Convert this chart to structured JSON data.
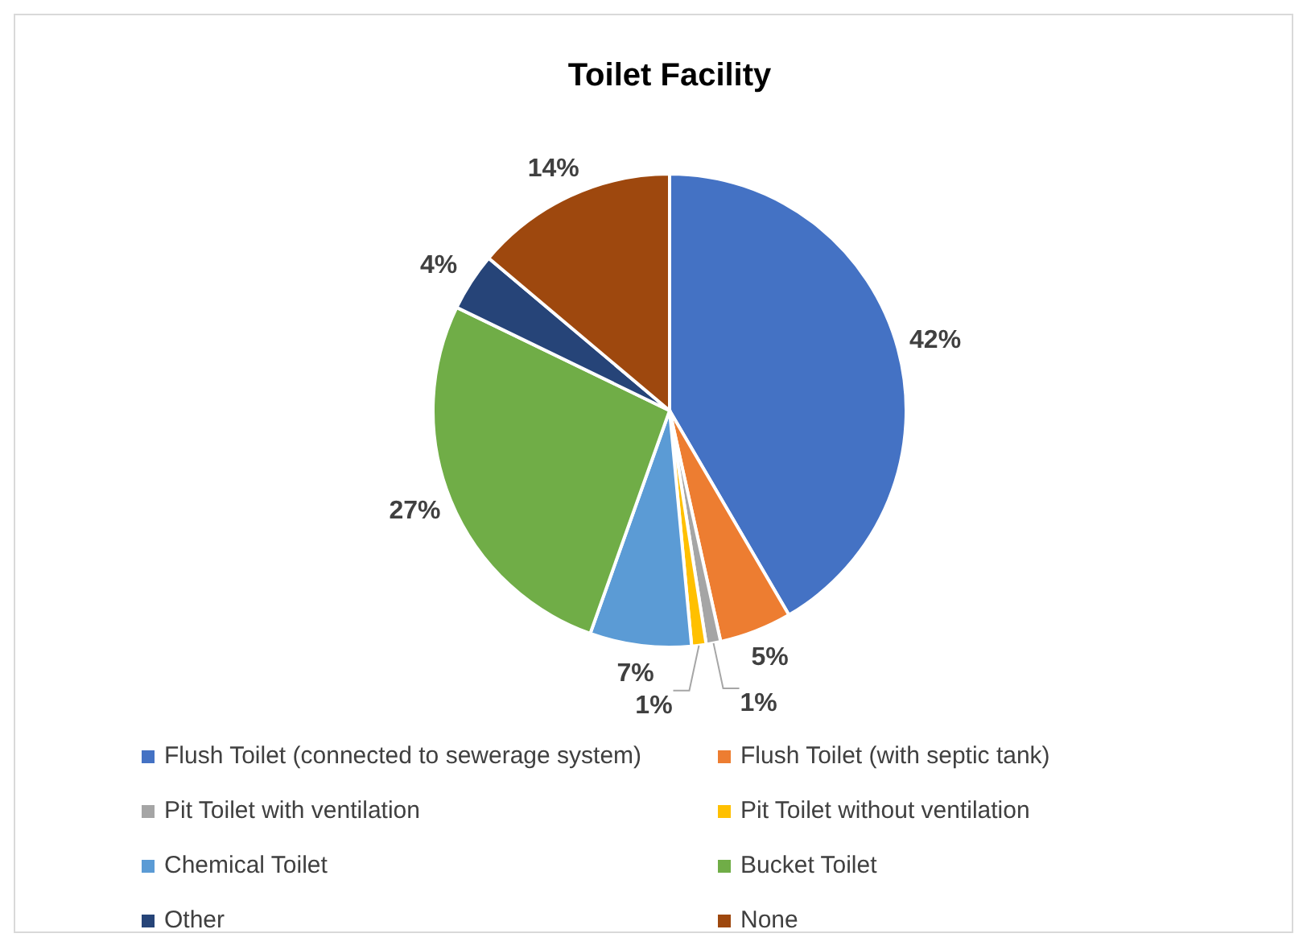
{
  "chart_data": {
    "type": "pie",
    "title": "Toilet Facility",
    "categories": [
      "Flush Toilet (connected to sewerage system)",
      "Flush Toilet (with septic tank)",
      "Pit Toilet with ventilation",
      "Pit Toilet without ventilation",
      "Chemical Toilet",
      "Bucket Toilet",
      "Other",
      "None"
    ],
    "values": [
      42,
      5,
      1,
      1,
      7,
      27,
      4,
      14
    ],
    "colors": [
      "#4472c4",
      "#ed7d31",
      "#a5a5a5",
      "#ffc000",
      "#5b9bd5",
      "#70ad47",
      "#264478",
      "#9e480e"
    ],
    "value_labels": [
      "42%",
      "5%",
      "1%",
      "1%",
      "7%",
      "27%",
      "4%",
      "14%"
    ],
    "legend": "bottom"
  }
}
